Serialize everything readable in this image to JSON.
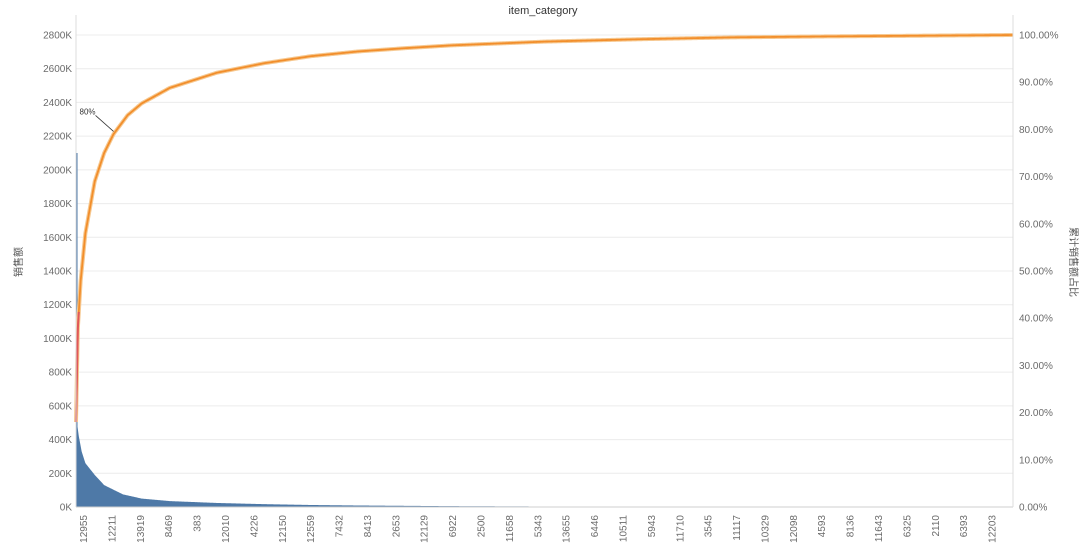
{
  "chart_data": {
    "type": "bar+line",
    "title": "item_category",
    "ylabel_left": "销售额",
    "ylabel_right": "累计销售额占比",
    "ylim_left": [
      0,
      2800
    ],
    "ylim_right": [
      0,
      100
    ],
    "yticks_left": [
      "0K",
      "200K",
      "400K",
      "600K",
      "800K",
      "1000K",
      "1200K",
      "1400K",
      "1600K",
      "1800K",
      "2000K",
      "2200K",
      "2400K",
      "2600K",
      "2800K"
    ],
    "yticks_right": [
      "0.00%",
      "10.00%",
      "20.00%",
      "30.00%",
      "40.00%",
      "50.00%",
      "60.00%",
      "70.00%",
      "80.00%",
      "90.00%",
      "100.00%"
    ],
    "x_category_count": 1000,
    "x_tick_labels": [
      "12955",
      "12211",
      "13919",
      "8469",
      "383",
      "12010",
      "4226",
      "12150",
      "12559",
      "7432",
      "8413",
      "2653",
      "12129",
      "6922",
      "2500",
      "11658",
      "5343",
      "13655",
      "6446",
      "10511",
      "5943",
      "11710",
      "3545",
      "11117",
      "10329",
      "12098",
      "4593",
      "8136",
      "11643",
      "6325",
      "2110",
      "6393",
      "12203"
    ],
    "series": [
      {
        "name": "销售额",
        "kind": "bar",
        "color": "#4e79a7",
        "points": [
          [
            0,
            2100
          ],
          [
            1,
            500
          ],
          [
            3,
            420
          ],
          [
            6,
            330
          ],
          [
            10,
            260
          ],
          [
            20,
            190
          ],
          [
            30,
            130
          ],
          [
            50,
            75
          ],
          [
            70,
            50
          ],
          [
            100,
            35
          ],
          [
            150,
            24
          ],
          [
            200,
            17
          ],
          [
            250,
            12
          ],
          [
            300,
            9
          ],
          [
            350,
            7
          ],
          [
            400,
            5
          ],
          [
            500,
            3
          ],
          [
            600,
            2
          ],
          [
            700,
            1
          ],
          [
            999,
            0.5
          ]
        ]
      },
      {
        "name": "累计销售额占比",
        "kind": "line",
        "color": "#f28e2b",
        "points": [
          [
            0,
            18
          ],
          [
            2,
            38
          ],
          [
            5,
            48
          ],
          [
            10,
            58
          ],
          [
            20,
            69
          ],
          [
            30,
            75
          ],
          [
            40,
            79
          ],
          [
            55,
            83
          ],
          [
            70,
            85.5
          ],
          [
            100,
            88.8
          ],
          [
            150,
            92
          ],
          [
            200,
            94
          ],
          [
            250,
            95.5
          ],
          [
            300,
            96.5
          ],
          [
            350,
            97.2
          ],
          [
            400,
            97.8
          ],
          [
            500,
            98.6
          ],
          [
            600,
            99.1
          ],
          [
            700,
            99.5
          ],
          [
            800,
            99.7
          ],
          [
            999,
            100
          ]
        ]
      }
    ],
    "annotation": {
      "label": "80%",
      "x": 40,
      "y": 80
    },
    "grid": true
  }
}
